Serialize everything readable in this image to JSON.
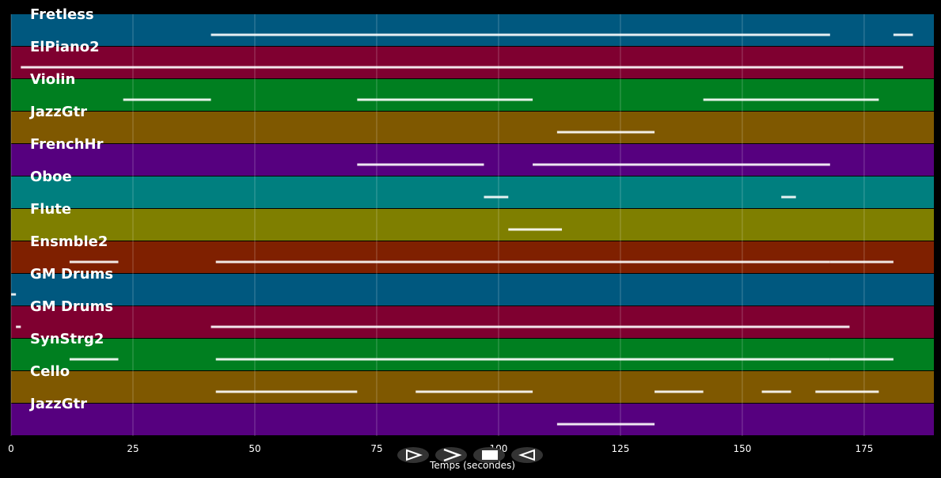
{
  "tracks": [
    {
      "name": "Fretless",
      "color": "#00587f",
      "segments": [
        [
          41,
          168
        ],
        [
          181,
          185
        ]
      ]
    },
    {
      "name": "ElPiano2",
      "color": "#7f0030",
      "segments": [
        [
          2,
          183
        ]
      ]
    },
    {
      "name": "Violin",
      "color": "#007f20",
      "segments": [
        [
          23,
          41
        ],
        [
          71,
          107
        ],
        [
          142,
          178
        ]
      ]
    },
    {
      "name": "JazzGtr",
      "color": "#7f5800",
      "segments": [
        [
          112,
          132
        ]
      ]
    },
    {
      "name": "FrenchHr",
      "color": "#56007f",
      "segments": [
        [
          71,
          97
        ],
        [
          107,
          168
        ]
      ]
    },
    {
      "name": "Oboe",
      "color": "#007f7f",
      "segments": [
        [
          97,
          102
        ],
        [
          158,
          161
        ]
      ]
    },
    {
      "name": "Flute",
      "color": "#7f7f00",
      "segments": [
        [
          102,
          113
        ]
      ]
    },
    {
      "name": "Ensmble2",
      "color": "#7f2000",
      "segments": [
        [
          12,
          22
        ],
        [
          42,
          168
        ],
        [
          168,
          181
        ]
      ]
    },
    {
      "name": "GM Drums",
      "color": "#00587f",
      "segments": [
        [
          0,
          1
        ]
      ]
    },
    {
      "name": "GM Drums",
      "color": "#7f0030",
      "segments": [
        [
          1,
          2
        ],
        [
          41,
          172
        ]
      ]
    },
    {
      "name": "SynStrg2",
      "color": "#007f20",
      "segments": [
        [
          12,
          22
        ],
        [
          42,
          168
        ],
        [
          168,
          181
        ]
      ]
    },
    {
      "name": "Cello",
      "color": "#7f5800",
      "segments": [
        [
          42,
          71
        ],
        [
          83,
          107
        ],
        [
          132,
          142
        ],
        [
          154,
          160
        ],
        [
          165,
          178
        ]
      ]
    },
    {
      "name": "JazzGtr",
      "color": "#56007f",
      "segments": [
        [
          112,
          132
        ]
      ]
    }
  ],
  "axis": {
    "xlim": [
      0,
      189.3
    ],
    "xticks": [
      0,
      25,
      50,
      75,
      100,
      125,
      150,
      175
    ],
    "xlabel": "Temps (secondes)"
  }
}
